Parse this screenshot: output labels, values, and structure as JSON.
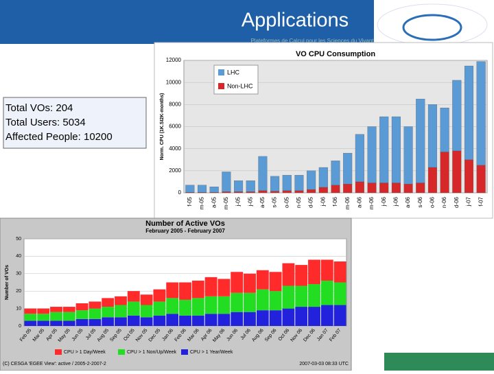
{
  "header": {
    "title": "Applications",
    "subtitle": "Plateformes de Calcul pour les Sciences du Vivant"
  },
  "info": [
    "Total VOs:  204",
    "Total Users:  5034",
    "Affected People:  10200"
  ],
  "chart_data": [
    {
      "type": "bar",
      "stacked": true,
      "title": "VO CPU Consumption",
      "y_label": "Norm. CPU (1K.SI2K-months)",
      "categories": [
        "f-05",
        "m-05",
        "a-05",
        "m-05",
        "j-05",
        "j-05",
        "a-05",
        "s-05",
        "o-05",
        "n-05",
        "d-05",
        "j-06",
        "f-06",
        "m-06",
        "a-06",
        "m-06",
        "j-06",
        "j-06",
        "a-06",
        "s-06",
        "o-06",
        "n-06",
        "d-06",
        "j-07",
        "f-07"
      ],
      "series": [
        {
          "name": "LHC",
          "color": "#5b9bd5",
          "values": [
            650,
            650,
            500,
            1800,
            1000,
            1000,
            3100,
            1350,
            1400,
            1400,
            1700,
            1800,
            2200,
            2800,
            4300,
            5100,
            6000,
            6000,
            5200,
            7600,
            5700,
            4000,
            6400,
            8500,
            9400
          ]
        },
        {
          "name": "Non-LHC",
          "color": "#d62828",
          "values": [
            50,
            50,
            50,
            100,
            100,
            100,
            200,
            150,
            200,
            200,
            300,
            500,
            700,
            800,
            1000,
            900,
            900,
            900,
            800,
            900,
            2300,
            3700,
            3800,
            3000,
            2500
          ]
        }
      ],
      "ylim": [
        0,
        12000
      ],
      "yticks": [
        0,
        2000,
        4000,
        6000,
        8000,
        10000,
        12000
      ],
      "grid": true,
      "legend": "top-left"
    },
    {
      "type": "bar",
      "stacked": true,
      "title": "Number of Active VOs",
      "subtitle": "February 2005 - February 2007",
      "y_label": "Number of VOs",
      "categories": [
        "Feb 05",
        "Mar 05",
        "Apr 05",
        "May 05",
        "Jun 05",
        "Jul 05",
        "Aug 05",
        "Sep 05",
        "Oct 05",
        "Nov 05",
        "Dec 05",
        "Jan 06",
        "Feb 06",
        "Mar 06",
        "Apr 06",
        "May 06",
        "Jun 06",
        "Jul 06",
        "Aug 06",
        "Sep 06",
        "Oct 06",
        "Nov 06",
        "Dec 06",
        "Jan 07",
        "Feb 07"
      ],
      "series": [
        {
          "name": "CPU > 1 Day/Week",
          "color": "#ff2a2a",
          "values": [
            3,
            3,
            3,
            3,
            4,
            4,
            5,
            5,
            6,
            6,
            7,
            9,
            10,
            10,
            11,
            10,
            12,
            11,
            11,
            11,
            13,
            12,
            14,
            12,
            12
          ]
        },
        {
          "name": "CPU > 1 Non/Up/Week",
          "color": "#22dd22",
          "values": [
            4,
            4,
            5,
            5,
            5,
            6,
            6,
            7,
            8,
            7,
            8,
            9,
            9,
            10,
            10,
            10,
            11,
            11,
            12,
            11,
            13,
            12,
            13,
            14,
            13
          ]
        },
        {
          "name": "CPU > 1 Year/Week",
          "color": "#2222dd",
          "values": [
            3,
            3,
            3,
            3,
            4,
            4,
            5,
            5,
            6,
            5,
            6,
            7,
            6,
            6,
            7,
            7,
            8,
            8,
            9,
            9,
            10,
            11,
            11,
            12,
            12
          ]
        }
      ],
      "ylim": [
        0,
        50
      ],
      "yticks": [
        0,
        10,
        20,
        30,
        40,
        50
      ],
      "grid": true,
      "legend": "bottom",
      "footer": "(C) CESGA 'EGEE View': active / 2005-2-2007-2",
      "timestamp": "2007-03-03 08:33 UTC"
    }
  ]
}
